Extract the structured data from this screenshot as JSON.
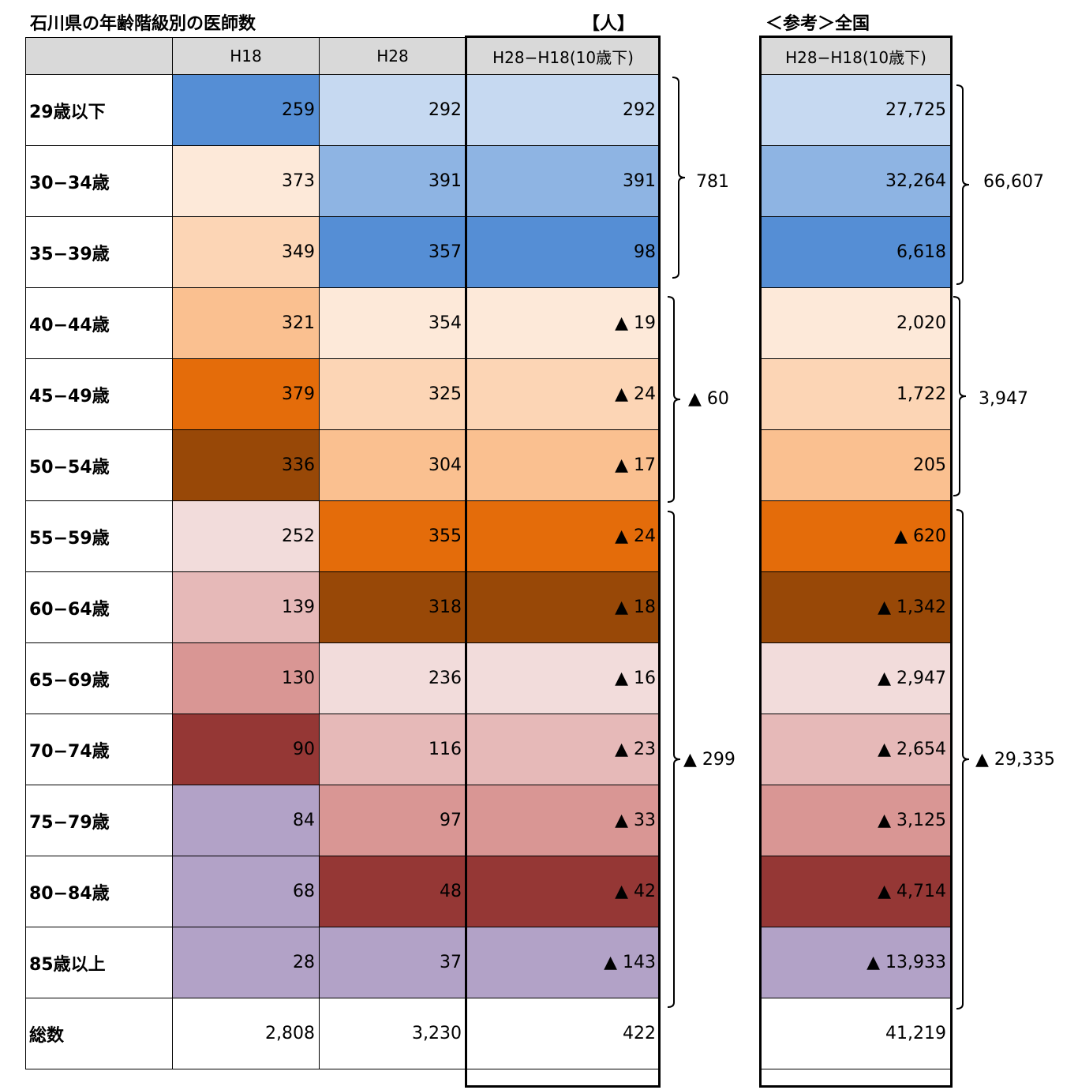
{
  "titles": {
    "main": "石川県の年齢階級別の医師数",
    "unit": "【人】",
    "reference": "＜参考＞全国"
  },
  "headers": {
    "label": "",
    "h18": "H18",
    "h28": "H28",
    "diff": "H28−H18(10歳下)",
    "national_diff": "H28−H18(10歳下)"
  },
  "rows": [
    {
      "label": "29歳以下",
      "h18": "259",
      "h28": "292",
      "diff": "292",
      "national": "27,725",
      "c18": "#558ed5",
      "c28": "#c6d9f1",
      "cd": "#c6d9f1",
      "cn": "#c6d9f1"
    },
    {
      "label": "30−34歳",
      "h18": "373",
      "h28": "391",
      "diff": "391",
      "national": "32,264",
      "c18": "#fde9d9",
      "c28": "#8eb4e3",
      "cd": "#8eb4e3",
      "cn": "#8eb4e3"
    },
    {
      "label": "35−39歳",
      "h18": "349",
      "h28": "357",
      "diff": "98",
      "national": "6,618",
      "c18": "#fcd5b5",
      "c28": "#558ed5",
      "cd": "#558ed5",
      "cn": "#558ed5"
    },
    {
      "label": "40−44歳",
      "h18": "321",
      "h28": "354",
      "diff": "▲ 19",
      "national": "2,020",
      "c18": "#fac090",
      "c28": "#fde9d9",
      "cd": "#fde9d9",
      "cn": "#fde9d9"
    },
    {
      "label": "45−49歳",
      "h18": "379",
      "h28": "325",
      "diff": "▲ 24",
      "national": "1,722",
      "c18": "#e46c0a",
      "c28": "#fcd5b5",
      "cd": "#fcd5b5",
      "cn": "#fcd5b5"
    },
    {
      "label": "50−54歳",
      "h18": "336",
      "h28": "304",
      "diff": "▲ 17",
      "national": "205",
      "c18": "#984807",
      "c28": "#fac090",
      "cd": "#fac090",
      "cn": "#fac090"
    },
    {
      "label": "55−59歳",
      "h18": "252",
      "h28": "355",
      "diff": "▲ 24",
      "national": "▲ 620",
      "c18": "#f2dcdb",
      "c28": "#e46c0a",
      "cd": "#e46c0a",
      "cn": "#e46c0a"
    },
    {
      "label": "60−64歳",
      "h18": "139",
      "h28": "318",
      "diff": "▲ 18",
      "national": "▲ 1,342",
      "c18": "#e6b9b8",
      "c28": "#984807",
      "cd": "#984807",
      "cn": "#984807"
    },
    {
      "label": "65−69歳",
      "h18": "130",
      "h28": "236",
      "diff": "▲ 16",
      "national": "▲ 2,947",
      "c18": "#d99694",
      "c28": "#f2dcdb",
      "cd": "#f2dcdb",
      "cn": "#f2dcdb"
    },
    {
      "label": "70−74歳",
      "h18": "90",
      "h28": "116",
      "diff": "▲ 23",
      "national": "▲ 2,654",
      "c18": "#953735",
      "c28": "#e6b9b8",
      "cd": "#e6b9b8",
      "cn": "#e6b9b8"
    },
    {
      "label": "75−79歳",
      "h18": "84",
      "h28": "97",
      "diff": "▲ 33",
      "national": "▲ 3,125",
      "c18": "#b2a2c7",
      "c28": "#d99694",
      "cd": "#d99694",
      "cn": "#d99694"
    },
    {
      "label": "80−84歳",
      "h18": "68",
      "h28": "48",
      "diff": "▲ 42",
      "national": "▲ 4,714",
      "c18": "#b2a2c7",
      "c28": "#953735",
      "cd": "#953735",
      "cn": "#953735"
    },
    {
      "label": "85歳以上",
      "h18": "28",
      "h28": "37",
      "diff": "▲ 143",
      "national": "▲ 13,933",
      "c18": "#b2a2c7",
      "c28": "#b2a2c7",
      "cd": "#b2a2c7",
      "cn": "#b2a2c7"
    },
    {
      "label": "総数",
      "h18": "2,808",
      "h28": "3,230",
      "diff": "422",
      "national": "41,219",
      "c18": "#ffffff",
      "c28": "#ffffff",
      "cd": "#ffffff",
      "cn": "#ffffff"
    }
  ],
  "groups": {
    "ishikawa": [
      "781",
      "▲ 60",
      "▲ 299"
    ],
    "national": [
      "66,607",
      "3,947",
      "▲ 29,335"
    ]
  }
}
